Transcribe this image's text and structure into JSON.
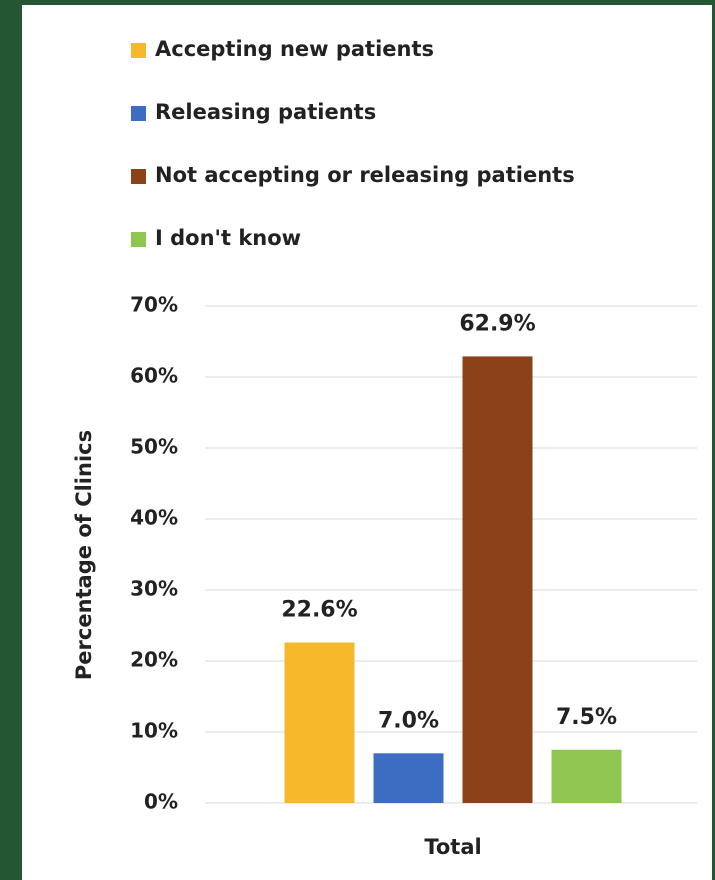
{
  "chart_data": {
    "type": "bar",
    "categories": [
      "Total"
    ],
    "series": [
      {
        "name": "Accepting new patients",
        "color": "#f6b82b",
        "values": [
          22.6
        ],
        "value_labels": [
          "22.6%"
        ]
      },
      {
        "name": "Releasing patients",
        "color": "#3d6cc3",
        "values": [
          7.0
        ],
        "value_labels": [
          "7.0%"
        ]
      },
      {
        "name": "Not accepting or releasing patients",
        "color": "#8b4218",
        "values": [
          62.9
        ],
        "value_labels": [
          "62.9%"
        ]
      },
      {
        "name": "I don't know",
        "color": "#8fc652",
        "values": [
          7.5
        ],
        "value_labels": [
          "7.5%"
        ]
      }
    ],
    "y_label": "Percentage of Clinics",
    "ylim": [
      0,
      70
    ],
    "yticks": [
      {
        "value": 0,
        "label": "0%"
      },
      {
        "value": 10,
        "label": "10%"
      },
      {
        "value": 20,
        "label": "20%"
      },
      {
        "value": 30,
        "label": "30%"
      },
      {
        "value": 40,
        "label": "40%"
      },
      {
        "value": 50,
        "label": "50%"
      },
      {
        "value": 60,
        "label": "60%"
      },
      {
        "value": 70,
        "label": "70%"
      }
    ],
    "grid": true,
    "legend": "top"
  }
}
